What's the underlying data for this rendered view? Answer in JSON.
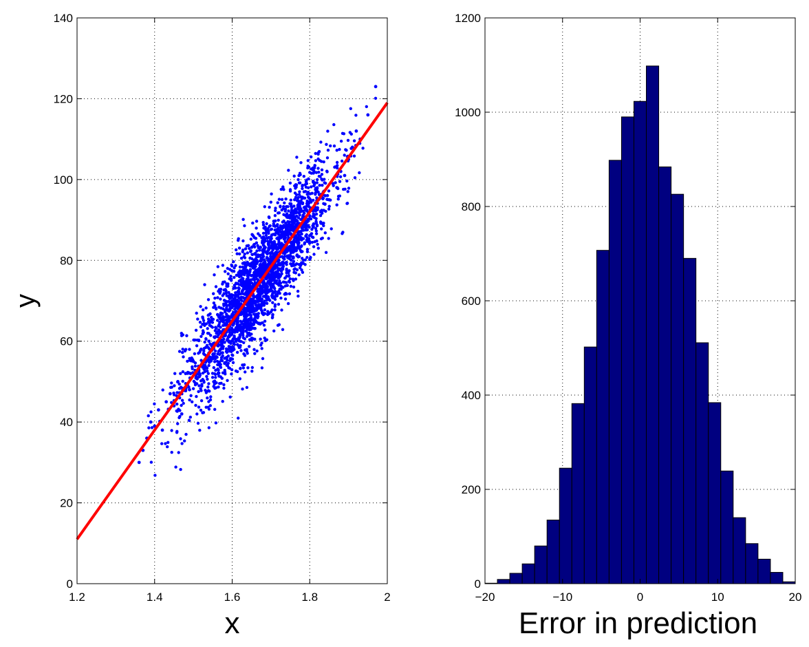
{
  "chart_data": [
    {
      "type": "scatter",
      "xlabel": "x",
      "ylabel": "y",
      "xlim": [
        1.2,
        2
      ],
      "ylim": [
        0,
        140
      ],
      "xticks": [
        1.2,
        1.4,
        1.6,
        1.8,
        2
      ],
      "yticks": [
        0,
        20,
        40,
        60,
        80,
        100,
        120,
        140
      ],
      "xtick_labels": [
        "1.2",
        "1.4",
        "1.6",
        "1.8",
        "2"
      ],
      "ytick_labels": [
        "0",
        "20",
        "40",
        "60",
        "80",
        "100",
        "120",
        "140"
      ],
      "grid": true,
      "series": [
        {
          "kind": "scatter",
          "color": "#0000ff",
          "points": [
            [
              1.36,
              30
            ],
            [
              1.37,
              33
            ],
            [
              1.38,
              36
            ],
            [
              1.39,
              40
            ],
            [
              1.4,
              39
            ],
            [
              1.41,
              43
            ],
            [
              1.42,
              38
            ],
            [
              1.43,
              45
            ],
            [
              1.44,
              47
            ],
            [
              1.45,
              44
            ],
            [
              1.46,
              50
            ],
            [
              1.47,
              42
            ],
            [
              1.48,
              52
            ],
            [
              1.49,
              48
            ],
            [
              1.5,
              55
            ],
            [
              1.51,
              51
            ],
            [
              1.52,
              58
            ],
            [
              1.53,
              54
            ],
            [
              1.54,
              60
            ],
            [
              1.55,
              56
            ],
            [
              1.56,
              62
            ],
            [
              1.57,
              58
            ],
            [
              1.58,
              64
            ],
            [
              1.59,
              61
            ],
            [
              1.6,
              66
            ],
            [
              1.61,
              63
            ],
            [
              1.62,
              68
            ],
            [
              1.63,
              65
            ],
            [
              1.64,
              70
            ],
            [
              1.65,
              68
            ],
            [
              1.66,
              73
            ],
            [
              1.67,
              70
            ],
            [
              1.68,
              75
            ],
            [
              1.69,
              72
            ],
            [
              1.7,
              78
            ],
            [
              1.71,
              76
            ],
            [
              1.72,
              80
            ],
            [
              1.73,
              78
            ],
            [
              1.74,
              83
            ],
            [
              1.75,
              81
            ],
            [
              1.76,
              86
            ],
            [
              1.77,
              84
            ],
            [
              1.78,
              88
            ],
            [
              1.79,
              86
            ],
            [
              1.8,
              91
            ],
            [
              1.81,
              89
            ],
            [
              1.82,
              93
            ],
            [
              1.83,
              92
            ],
            [
              1.84,
              96
            ],
            [
              1.85,
              95
            ],
            [
              1.86,
              99
            ],
            [
              1.87,
              98
            ],
            [
              1.88,
              102
            ],
            [
              1.89,
              101
            ],
            [
              1.9,
              105
            ],
            [
              1.91,
              108
            ],
            [
              1.92,
              112
            ],
            [
              1.93,
              110
            ],
            [
              1.95,
              116
            ],
            [
              1.97,
              123
            ]
          ]
        },
        {
          "kind": "line",
          "color": "#ff0000",
          "points": [
            [
              1.2,
              11
            ],
            [
              2,
              119
            ]
          ]
        }
      ]
    },
    {
      "type": "bar",
      "xlabel": "Error in prediction",
      "ylabel": "",
      "xlim": [
        -20,
        20
      ],
      "ylim": [
        0,
        1200
      ],
      "xticks": [
        -20,
        -10,
        0,
        10,
        20
      ],
      "yticks": [
        0,
        200,
        400,
        600,
        800,
        1000,
        1200
      ],
      "xtick_labels": [
        "−20",
        "−10",
        "0",
        "10",
        "20"
      ],
      "ytick_labels": [
        "0",
        "200",
        "400",
        "600",
        "800",
        "1000",
        "1200"
      ],
      "grid": true,
      "bar_color": "#000080",
      "bin_width": 1.6,
      "bin_centers": [
        -19.2,
        -17.6,
        -16,
        -14.4,
        -12.8,
        -11.2,
        -9.6,
        -8,
        -6.4,
        -4.8,
        -3.2,
        -1.6,
        0,
        1.6,
        3.2,
        4.8,
        6.4,
        8,
        9.6,
        11.2,
        12.8,
        14.4,
        16,
        17.6,
        19.2
      ],
      "values": [
        1,
        9,
        22,
        42,
        80,
        135,
        245,
        382,
        502,
        707,
        898,
        990,
        1023,
        1098,
        884,
        826,
        690,
        511,
        384,
        239,
        140,
        85,
        52,
        24,
        4
      ]
    }
  ]
}
